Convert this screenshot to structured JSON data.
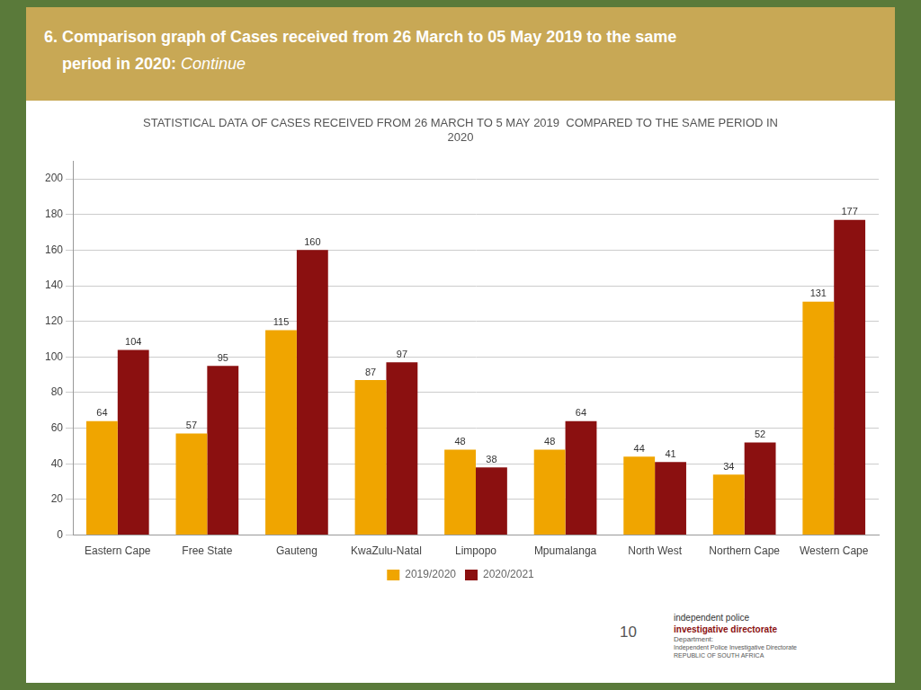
{
  "chart_data": {
    "type": "bar",
    "title": "STATISTICAL DATA OF CASES RECEIVED FROM 26 MARCH TO 5 MAY 2019  COMPARED TO THE SAME PERIOD IN\n2020",
    "categories": [
      "Eastern Cape",
      "Free State",
      "Gauteng",
      "KwaZulu-Natal",
      "Limpopo",
      "Mpumalanga",
      "North West",
      "Northern Cape",
      "Western Cape"
    ],
    "series": [
      {
        "name": "2019/2020",
        "color": "#F0A500",
        "values": [
          64,
          57,
          115,
          87,
          48,
          48,
          44,
          34,
          131
        ]
      },
      {
        "name": "2020/2021",
        "color": "#8B1010",
        "values": [
          104,
          95,
          160,
          97,
          38,
          64,
          41,
          52,
          177
        ]
      }
    ],
    "ylim": [
      0,
      210
    ],
    "yticks": [
      0,
      20,
      40,
      60,
      80,
      100,
      120,
      140,
      160,
      180,
      200
    ],
    "grid": true,
    "legend": "bottom",
    "data_labels": true,
    "annotations": [
      "6. Comparison graph of Cases received from 26 March to 05 May 2019 to the same",
      "    period in 2020: ",
      "Continue",
      "10",
      "independent police",
      "investigative directorate",
      "Department:",
      "Independent Police Investigative Directorate",
      "REPUBLIC OF SOUTH AFRICA"
    ]
  }
}
